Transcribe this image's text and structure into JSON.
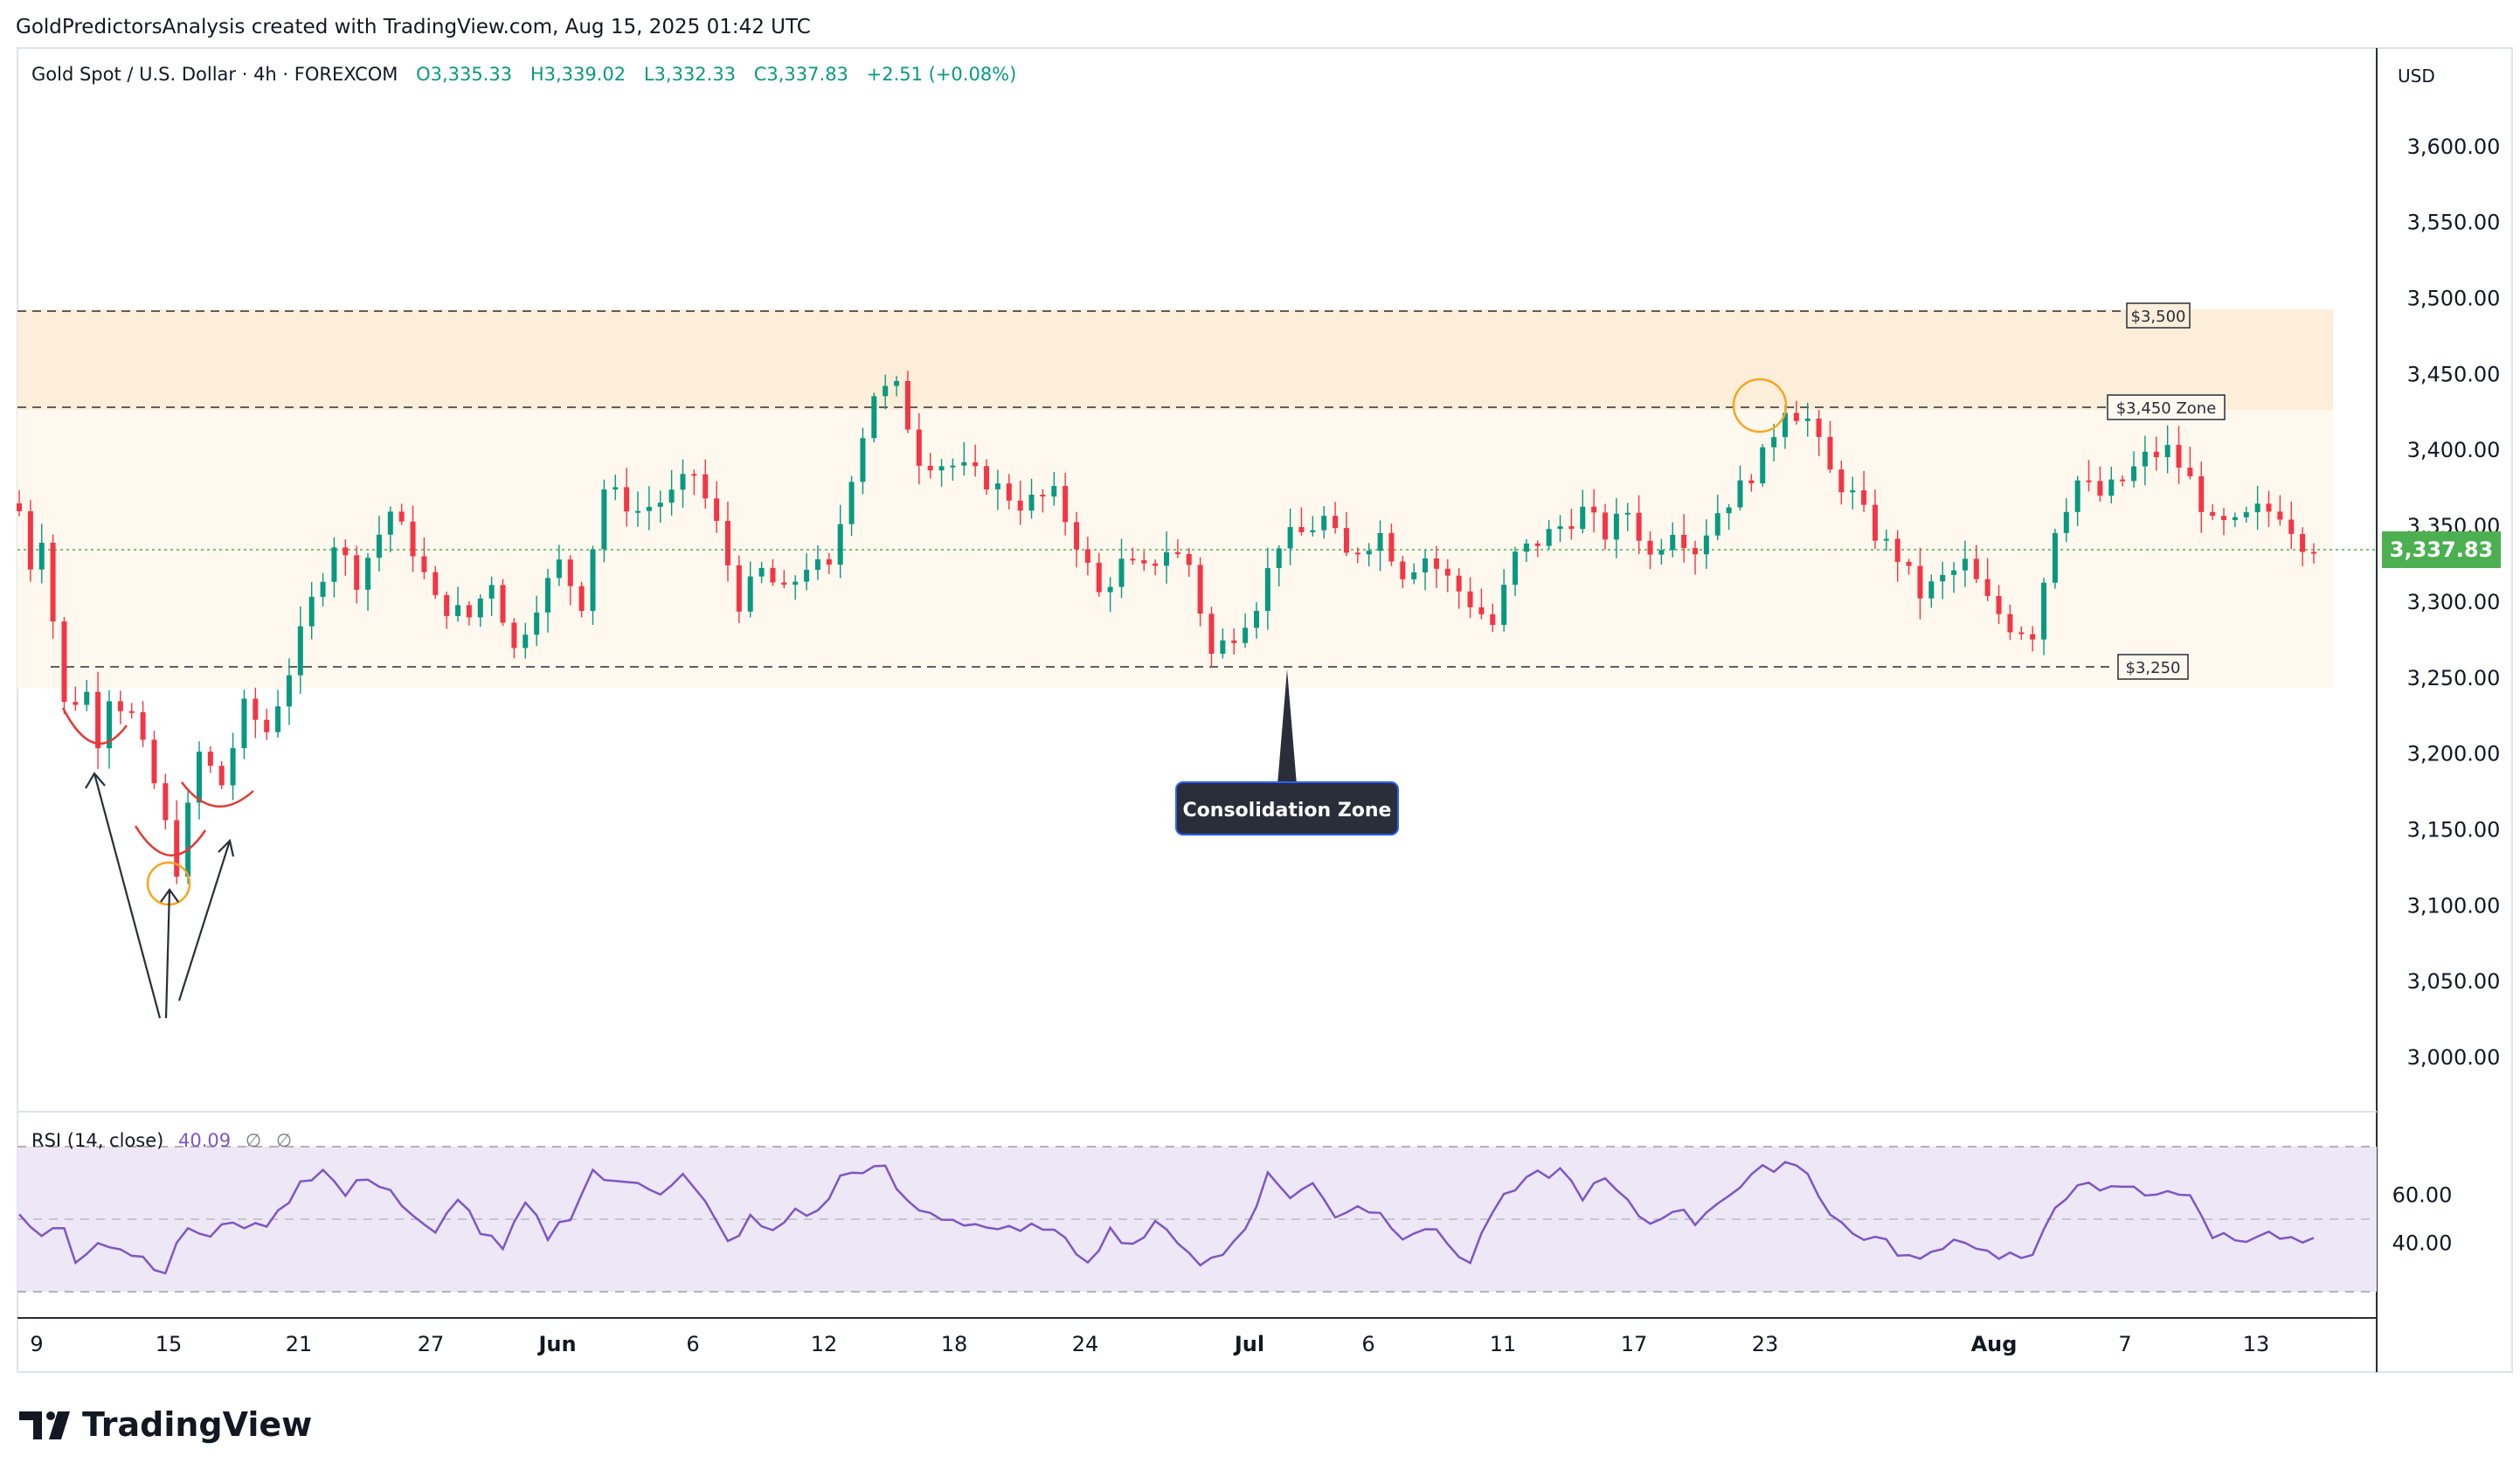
{
  "header": {
    "credit": "GoldPredictorsAnalysis created with TradingView.com, Aug 15, 2025 01:42 UTC"
  },
  "legend": {
    "symbol": "Gold Spot / U.S. Dollar · 4h · FOREXCOM",
    "open": "O3,335.33",
    "high": "H3,339.02",
    "low": "L3,332.33",
    "close": "C3,337.83",
    "change": "+2.51 (+0.08%)"
  },
  "currency": "USD",
  "last_price": "3,337.83",
  "rsi_legend": {
    "name": "RSI (14, close)",
    "value": "40.09",
    "extra1": "∅",
    "extra2": "∅"
  },
  "annotations": {
    "level_3500": "$3,500",
    "level_3450": "$3,450 Zone",
    "level_3250": "$3,250",
    "callout": "Consolidation Zone"
  },
  "brand": {
    "name": "TradingView"
  },
  "colors": {
    "up": "#089981",
    "down": "#f23645",
    "rsi": "#7e57c2",
    "rsi_band": "#ede7f6",
    "zone_upper": "#fdeed9",
    "zone_lower": "#fff8ee",
    "last_price_bg": "#4caf50",
    "circle": "#f5a623",
    "callout_bg": "#2a2e39"
  },
  "chart_data": {
    "type": "candlestick",
    "y_ticks": [
      "3,600.00",
      "3,550.00",
      "3,500.00",
      "3,450.00",
      "3,400.00",
      "3,350.00",
      "3,300.00",
      "3,250.00",
      "3,200.00",
      "3,150.00",
      "3,100.00",
      "3,050.00",
      "3,000.00"
    ],
    "y_tick_values": [
      3600,
      3550,
      3500,
      3450,
      3400,
      3350,
      3300,
      3250,
      3200,
      3150,
      3100,
      3050,
      3000
    ],
    "x_ticks": [
      "9",
      "15",
      "21",
      "27",
      "Jun",
      "6",
      "12",
      "18",
      "24",
      "Jul",
      "6",
      "11",
      "17",
      "23",
      "Aug",
      "7",
      "13"
    ],
    "x_tick_bold": [
      false,
      false,
      false,
      false,
      true,
      false,
      false,
      false,
      false,
      true,
      false,
      false,
      false,
      false,
      true,
      false,
      false
    ],
    "rsi_ticks": [
      "60.00",
      "40.00"
    ],
    "rsi_tick_values": [
      60,
      40
    ],
    "rsi_levels": [
      70,
      50,
      30
    ],
    "price_path": [
      [
        0,
        3360
      ],
      [
        1,
        3325
      ],
      [
        2,
        3345
      ],
      [
        4,
        3232
      ],
      [
        6,
        3240
      ],
      [
        7,
        3210
      ],
      [
        8,
        3240
      ],
      [
        10,
        3225
      ],
      [
        12,
        3180
      ],
      [
        14,
        3125
      ],
      [
        16,
        3200
      ],
      [
        18,
        3180
      ],
      [
        20,
        3230
      ],
      [
        22,
        3215
      ],
      [
        24,
        3255
      ],
      [
        26,
        3300
      ],
      [
        28,
        3340
      ],
      [
        30,
        3315
      ],
      [
        33,
        3360
      ],
      [
        35,
        3335
      ],
      [
        37,
        3300
      ],
      [
        40,
        3290
      ],
      [
        42,
        3315
      ],
      [
        44,
        3268
      ],
      [
        46,
        3300
      ],
      [
        48,
        3325
      ],
      [
        50,
        3300
      ],
      [
        52,
        3375
      ],
      [
        55,
        3360
      ],
      [
        58,
        3370
      ],
      [
        60,
        3385
      ],
      [
        62,
        3350
      ],
      [
        64,
        3300
      ],
      [
        66,
        3320
      ],
      [
        68,
        3305
      ],
      [
        70,
        3325
      ],
      [
        72,
        3320
      ],
      [
        74,
        3385
      ],
      [
        76,
        3438
      ],
      [
        78,
        3440
      ],
      [
        80,
        3395
      ],
      [
        83,
        3390
      ],
      [
        86,
        3380
      ],
      [
        89,
        3365
      ],
      [
        92,
        3370
      ],
      [
        94,
        3340
      ],
      [
        96,
        3305
      ],
      [
        98,
        3325
      ],
      [
        100,
        3320
      ],
      [
        102,
        3335
      ],
      [
        104,
        3325
      ],
      [
        106,
        3265
      ],
      [
        108,
        3280
      ],
      [
        110,
        3300
      ],
      [
        112,
        3340
      ],
      [
        114,
        3345
      ],
      [
        116,
        3355
      ],
      [
        118,
        3330
      ],
      [
        121,
        3345
      ],
      [
        123,
        3320
      ],
      [
        125,
        3330
      ],
      [
        127,
        3315
      ],
      [
        129,
        3300
      ],
      [
        131,
        3285
      ],
      [
        133,
        3330
      ],
      [
        136,
        3345
      ],
      [
        139,
        3360
      ],
      [
        141,
        3345
      ],
      [
        143,
        3360
      ],
      [
        145,
        3330
      ],
      [
        147,
        3350
      ],
      [
        149,
        3335
      ],
      [
        151,
        3360
      ],
      [
        153,
        3375
      ],
      [
        155,
        3395
      ],
      [
        157,
        3430
      ],
      [
        159,
        3420
      ],
      [
        161,
        3385
      ],
      [
        163,
        3370
      ],
      [
        165,
        3345
      ],
      [
        167,
        3330
      ],
      [
        169,
        3305
      ],
      [
        171,
        3315
      ],
      [
        173,
        3325
      ],
      [
        175,
        3300
      ],
      [
        177,
        3285
      ],
      [
        179,
        3280
      ],
      [
        181,
        3350
      ],
      [
        183,
        3380
      ],
      [
        185,
        3370
      ],
      [
        187,
        3380
      ],
      [
        189,
        3395
      ],
      [
        191,
        3400
      ],
      [
        193,
        3380
      ],
      [
        195,
        3350
      ],
      [
        197,
        3350
      ],
      [
        199,
        3360
      ],
      [
        201,
        3360
      ],
      [
        203,
        3340
      ],
      [
        204,
        3337.83
      ]
    ],
    "rsi_path": [
      [
        0,
        50
      ],
      [
        2,
        43
      ],
      [
        4,
        47
      ],
      [
        5,
        33
      ],
      [
        7,
        42
      ],
      [
        9,
        38
      ],
      [
        11,
        34
      ],
      [
        13,
        29
      ],
      [
        15,
        47
      ],
      [
        17,
        42
      ],
      [
        19,
        50
      ],
      [
        21,
        46
      ],
      [
        23,
        52
      ],
      [
        25,
        66
      ],
      [
        27,
        70
      ],
      [
        29,
        60
      ],
      [
        31,
        68
      ],
      [
        33,
        62
      ],
      [
        35,
        50
      ],
      [
        37,
        43
      ],
      [
        39,
        60
      ],
      [
        41,
        45
      ],
      [
        43,
        37
      ],
      [
        45,
        56
      ],
      [
        47,
        43
      ],
      [
        49,
        52
      ],
      [
        51,
        70
      ],
      [
        53,
        64
      ],
      [
        55,
        66
      ],
      [
        57,
        62
      ],
      [
        59,
        68
      ],
      [
        61,
        56
      ],
      [
        63,
        40
      ],
      [
        65,
        50
      ],
      [
        67,
        44
      ],
      [
        69,
        54
      ],
      [
        71,
        52
      ],
      [
        73,
        67
      ],
      [
        75,
        71
      ],
      [
        77,
        70
      ],
      [
        79,
        56
      ],
      [
        81,
        52
      ],
      [
        83,
        50
      ],
      [
        85,
        48
      ],
      [
        87,
        46
      ],
      [
        89,
        44
      ],
      [
        91,
        48
      ],
      [
        93,
        40
      ],
      [
        95,
        34
      ],
      [
        97,
        45
      ],
      [
        99,
        40
      ],
      [
        101,
        47
      ],
      [
        103,
        42
      ],
      [
        105,
        32
      ],
      [
        107,
        35
      ],
      [
        109,
        47
      ],
      [
        111,
        68
      ],
      [
        113,
        60
      ],
      [
        115,
        64
      ],
      [
        117,
        52
      ],
      [
        119,
        56
      ],
      [
        121,
        52
      ],
      [
        123,
        44
      ],
      [
        125,
        47
      ],
      [
        127,
        40
      ],
      [
        129,
        32
      ],
      [
        131,
        54
      ],
      [
        133,
        62
      ],
      [
        135,
        68
      ],
      [
        137,
        70
      ],
      [
        139,
        60
      ],
      [
        141,
        66
      ],
      [
        143,
        56
      ],
      [
        145,
        48
      ],
      [
        147,
        55
      ],
      [
        149,
        49
      ],
      [
        151,
        58
      ],
      [
        153,
        63
      ],
      [
        155,
        70
      ],
      [
        157,
        74
      ],
      [
        159,
        70
      ],
      [
        161,
        52
      ],
      [
        163,
        44
      ],
      [
        165,
        42
      ],
      [
        167,
        37
      ],
      [
        169,
        32
      ],
      [
        171,
        40
      ],
      [
        173,
        42
      ],
      [
        175,
        36
      ],
      [
        177,
        35
      ],
      [
        179,
        33
      ],
      [
        181,
        55
      ],
      [
        183,
        66
      ],
      [
        185,
        60
      ],
      [
        187,
        64
      ],
      [
        189,
        60
      ],
      [
        191,
        63
      ],
      [
        193,
        58
      ],
      [
        195,
        44
      ],
      [
        197,
        42
      ],
      [
        199,
        44
      ],
      [
        201,
        42
      ],
      [
        203,
        40
      ],
      [
        204,
        40.09
      ]
    ]
  }
}
